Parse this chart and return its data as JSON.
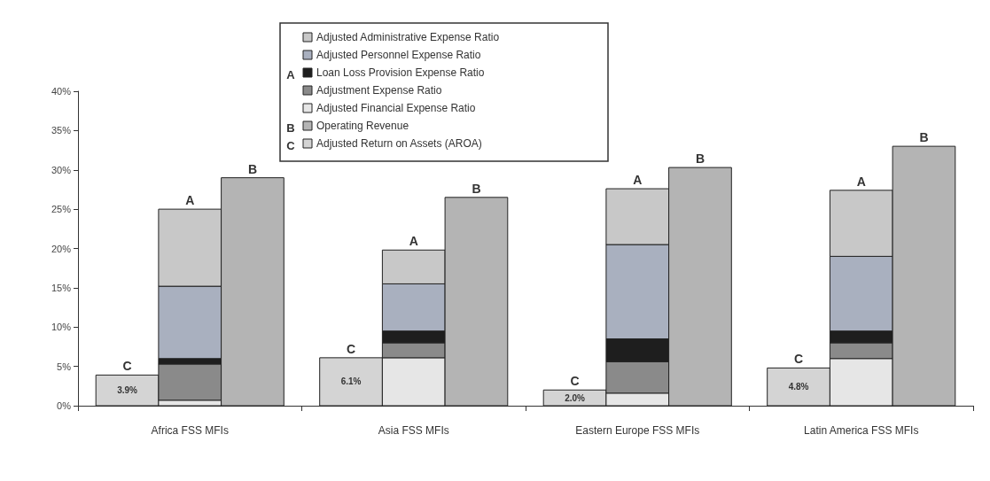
{
  "chart_data": {
    "type": "bar",
    "categories": [
      "Africa FSS MFIs",
      "Asia FSS MFIs",
      "Eastern Europe FSS MFIs",
      "Latin America FSS MFIs"
    ],
    "series": [
      {
        "name": "Adjusted Return on Assets (AROA)",
        "color": "#d4d4d4",
        "values": [
          3.9,
          6.1,
          2.0,
          4.8
        ],
        "value_labels": [
          "3.9%",
          "6.1%",
          "2.0%",
          "4.8%"
        ]
      },
      {
        "name": "Adjusted Financial Expense Ratio",
        "color": "#e6e6e6",
        "base": [
          0,
          0,
          0,
          0
        ],
        "values": [
          0.7,
          6.1,
          1.6,
          6.0
        ]
      },
      {
        "name": "Adjustment Expense Ratio",
        "color": "#8a8a8a",
        "base": [
          0.7,
          6.1,
          1.6,
          6.0
        ],
        "values": [
          4.6,
          1.9,
          4.0,
          2.0
        ]
      },
      {
        "name": "Loan Loss Provision Expense Ratio",
        "color": "#1e1e1e",
        "base": [
          5.3,
          8.0,
          5.6,
          8.0
        ],
        "values": [
          0.7,
          1.5,
          2.9,
          1.5
        ]
      },
      {
        "name": "Adjusted Personnel Expense Ratio",
        "color": "#a9b0bf",
        "base": [
          6.0,
          9.5,
          8.5,
          9.5
        ],
        "values": [
          9.2,
          6.0,
          12.0,
          9.5
        ]
      },
      {
        "name": "Adjusted Administrative Expense Ratio",
        "color": "#c8c8c8",
        "base": [
          15.2,
          15.5,
          20.5,
          19.0
        ],
        "values": [
          9.8,
          4.3,
          7.1,
          8.4
        ]
      },
      {
        "name": "Operating Revenue",
        "color": "#b4b4b4",
        "values": [
          29.0,
          26.5,
          30.3,
          33.0
        ]
      }
    ],
    "annotations": [
      "C",
      "A",
      "B",
      "C",
      "A",
      "B",
      "C",
      "A",
      "B",
      "C",
      "A",
      "B"
    ],
    "ylim": [
      0,
      40
    ],
    "yticks": [
      {
        "value": 0,
        "label": "0%"
      },
      {
        "value": 5,
        "label": "5%"
      },
      {
        "value": 10,
        "label": "10%"
      },
      {
        "value": 15,
        "label": "15%"
      },
      {
        "value": 20,
        "label": "20%"
      },
      {
        "value": 25,
        "label": "25%"
      },
      {
        "value": 30,
        "label": "30%"
      },
      {
        "value": 35,
        "label": "35%"
      },
      {
        "value": 40,
        "label": "40%"
      }
    ],
    "grid": false,
    "legend": "top"
  }
}
